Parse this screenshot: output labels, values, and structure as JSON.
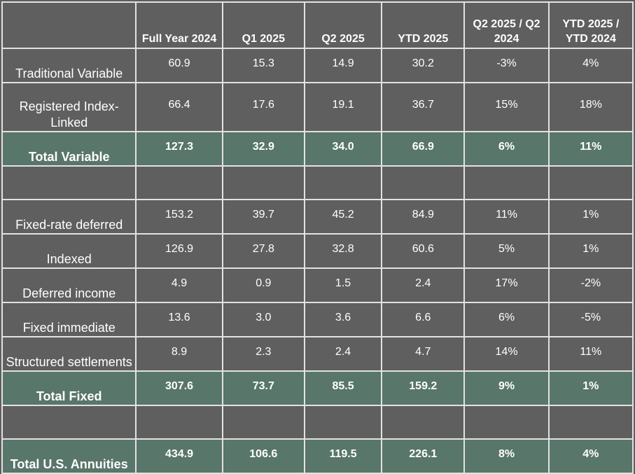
{
  "table": {
    "header": [
      "Full Year 2024",
      "Q1 2025",
      "Q2 2025",
      "YTD 2025",
      "Q2 2025 / Q2 2024",
      "YTD 2025 / YTD 2024"
    ],
    "sections": [
      {
        "rows": [
          [
            "Traditional Variable",
            "60.9",
            "15.3",
            "14.9",
            "30.2",
            "-3%",
            "4%"
          ],
          [
            "Registered Index-Linked",
            "66.4",
            "17.6",
            "19.1",
            "36.7",
            "15%",
            "18%"
          ],
          [
            "Total Variable",
            "127.3",
            "32.9",
            "34.0",
            "66.9",
            "6%",
            "11%"
          ]
        ]
      },
      {
        "rows": [
          [
            "Fixed-rate deferred",
            "153.2",
            "39.7",
            "45.2",
            "84.9",
            "11%",
            "1%"
          ],
          [
            "Indexed",
            "126.9",
            "27.8",
            "32.8",
            "60.6",
            "5%",
            "1%"
          ],
          [
            "Deferred income",
            "4.9",
            "0.9",
            "1.5",
            "2.4",
            "17%",
            "-2%"
          ],
          [
            "Fixed immediate",
            "13.6",
            "3.0",
            "3.6",
            "6.6",
            "6%",
            "-5%"
          ],
          [
            "Structured settlements",
            "8.9",
            "2.3",
            "2.4",
            "4.7",
            "14%",
            "11%"
          ],
          [
            "Total Fixed",
            "307.6",
            "73.7",
            "85.5",
            "159.2",
            "9%",
            "1%"
          ]
        ]
      },
      {
        "rows": [
          [
            "Total U.S. Annuities",
            "434.9",
            "106.6",
            "119.5",
            "226.1",
            "8%",
            "4%"
          ]
        ]
      }
    ]
  }
}
